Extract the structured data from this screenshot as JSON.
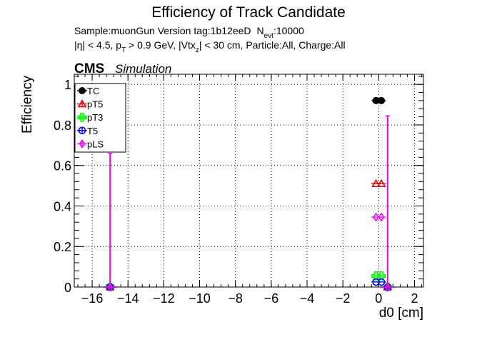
{
  "chart_data": {
    "type": "scatter",
    "title": "Efficiency of Track Candidate",
    "subtitle_sample": "Sample:muonGun   Version tag:1b12eeD",
    "subtitle_nevt_label": "N",
    "subtitle_nevt_sub": "evt",
    "subtitle_nevt_value": ":10000",
    "cuts": {
      "eta_text": "|η| < 4.5, p",
      "pt_sub": "T",
      "pt_text": " > 0.9 GeV, |Vtx",
      "vtx_sub": "z",
      "rest_text": "| < 30 cm, Particle:All, Charge:All"
    },
    "experiment_label": "CMS",
    "experiment_sublabel": "Simulation",
    "xlabel": "d0 [cm]",
    "ylabel": "Efficiency",
    "xlim": [
      -17,
      2.5
    ],
    "ylim": [
      0,
      1.05
    ],
    "xticks": [
      -16,
      -14,
      -12,
      -10,
      -8,
      -6,
      -4,
      -2,
      0,
      2
    ],
    "xtick_labels": [
      "−16",
      "−14",
      "−12",
      "−10",
      "−8",
      "−6",
      "−4",
      "−2",
      "0",
      "2"
    ],
    "yticks": [
      0,
      0.2,
      0.4,
      0.6,
      0.8,
      1
    ],
    "ytick_labels": [
      "0",
      "0.2",
      "0.4",
      "0.6",
      "0.8",
      "1"
    ],
    "grid": true,
    "legend_position": "top-left",
    "series": [
      {
        "name": "TC",
        "color": "#000000",
        "marker": "filled-circle",
        "points": [
          {
            "x": -15.0,
            "y": 0.0
          },
          {
            "x": 0.0,
            "y": 0.92
          },
          {
            "x": 0.5,
            "y": 0.0
          }
        ]
      },
      {
        "name": "pT5",
        "color": "#ff0000",
        "marker": "open-triangle",
        "points": [
          {
            "x": -15.0,
            "y": 0.0
          },
          {
            "x": 0.0,
            "y": 0.51
          },
          {
            "x": 0.5,
            "y": 0.0
          }
        ]
      },
      {
        "name": "pT3",
        "color": "#00ff00",
        "marker": "open-cross",
        "points": [
          {
            "x": -15.0,
            "y": 0.0
          },
          {
            "x": 0.0,
            "y": 0.055
          },
          {
            "x": 0.5,
            "y": 0.0
          }
        ]
      },
      {
        "name": "T5",
        "color": "#0000ff",
        "marker": "open-circle",
        "points": [
          {
            "x": -15.0,
            "y": 0.0
          },
          {
            "x": 0.0,
            "y": 0.025
          },
          {
            "x": 0.5,
            "y": 0.0
          }
        ]
      },
      {
        "name": "pLS",
        "color": "#ff00ff",
        "marker": "open-diamond",
        "points": [
          {
            "x": -15.0,
            "y": 0.0,
            "err_up": 0.66
          },
          {
            "x": 0.0,
            "y": 0.345
          },
          {
            "x": 0.5,
            "y": 0.0,
            "err_up": 0.845
          }
        ]
      }
    ]
  }
}
